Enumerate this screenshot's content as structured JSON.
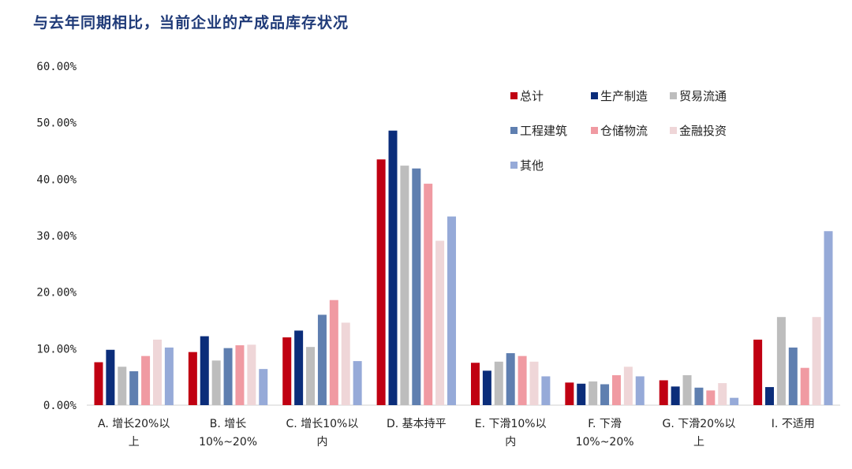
{
  "chart_data": {
    "type": "bar",
    "title": "与去年同期相比，当前企业的产成品库存状况",
    "y_ticks": [
      "60.00%",
      "50.00%",
      "40.00%",
      "30.00%",
      "20.00%",
      "10.00%",
      "0.00%"
    ],
    "ylim": [
      0,
      60
    ],
    "categories": [
      [
        "A. 增长20%以",
        "上"
      ],
      [
        "B. 增长",
        "10%~20%"
      ],
      [
        "C. 增长10%以",
        "内"
      ],
      [
        "D. 基本持平"
      ],
      [
        "E. 下滑10%以",
        "内"
      ],
      [
        "F. 下滑",
        "10%~20%"
      ],
      [
        "G. 下滑20%以",
        "上"
      ],
      [
        "I. 不适用"
      ]
    ],
    "series": [
      {
        "name": "总计",
        "color": "#c00012",
        "values": [
          7.6,
          9.4,
          12.0,
          43.5,
          7.5,
          4.0,
          4.4,
          11.6
        ]
      },
      {
        "name": "生产制造",
        "color": "#0b2d7a",
        "values": [
          9.8,
          12.2,
          13.2,
          48.6,
          6.1,
          3.8,
          3.3,
          3.2
        ]
      },
      {
        "name": "贸易流通",
        "color": "#bdbdbd",
        "values": [
          6.8,
          7.9,
          10.3,
          42.4,
          7.7,
          4.2,
          5.3,
          15.6
        ]
      },
      {
        "name": "工程建筑",
        "color": "#5f7fb0",
        "values": [
          6.0,
          10.1,
          16.0,
          41.9,
          9.2,
          3.7,
          3.1,
          10.2
        ]
      },
      {
        "name": "仓储物流",
        "color": "#f09aa2",
        "values": [
          8.7,
          10.6,
          18.6,
          39.2,
          8.7,
          5.3,
          2.6,
          6.6
        ]
      },
      {
        "name": "金融投资",
        "color": "#efd6d8",
        "values": [
          11.6,
          10.7,
          14.6,
          29.1,
          7.7,
          6.8,
          3.9,
          15.6
        ]
      },
      {
        "name": "其他",
        "color": "#96aad8",
        "values": [
          10.2,
          6.4,
          7.8,
          33.4,
          5.1,
          5.1,
          1.3,
          30.8
        ]
      }
    ],
    "legend": "top-right, 3 columns",
    "grid": false
  }
}
